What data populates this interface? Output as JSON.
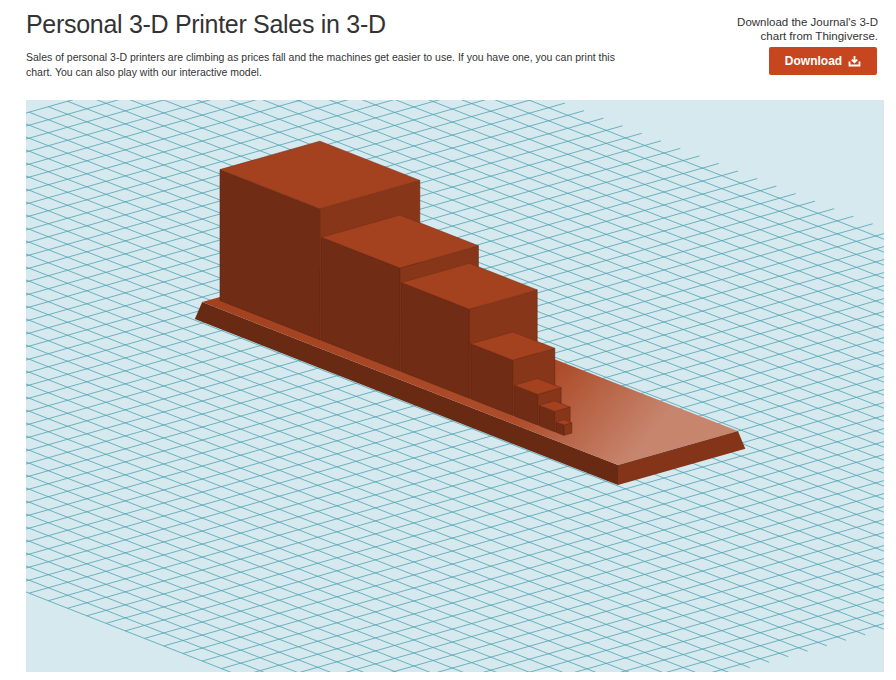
{
  "chart_data": {
    "type": "bar3d",
    "title": "Personal 3-D Printer Sales in 3-D",
    "subtitle": "Sales of personal 3-D printers are climbing as prices fall and the machines get easier to use. If you have one, you can print this chart. You can also play with our interactive model.",
    "categories": [
      null,
      null,
      null,
      null,
      null,
      null,
      null
    ],
    "values": [
      35000,
      17000,
      11000,
      2600,
      450,
      130,
      17
    ],
    "color": "#a9431f",
    "tick_labels": false
  },
  "download": {
    "note": "Download the Journal's 3-D chart from Thingiverse.",
    "button": "Download"
  }
}
